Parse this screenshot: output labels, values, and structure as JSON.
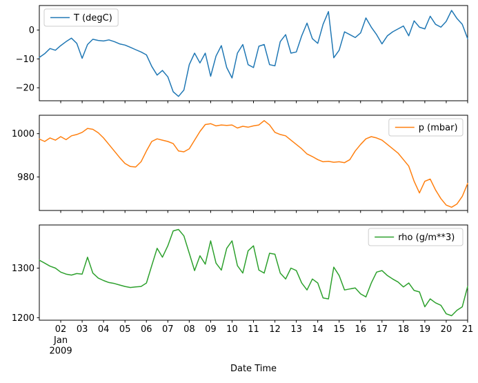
{
  "figure": {
    "xlabel": "Date Time",
    "x_offset_labels": [
      "Jan",
      "2009"
    ],
    "xticks": {
      "values": [
        2,
        3,
        4,
        5,
        6,
        7,
        8,
        9,
        10,
        11,
        12,
        13,
        14,
        15,
        16,
        17,
        18,
        19,
        20,
        21
      ],
      "labels": [
        "02",
        "03",
        "04",
        "05",
        "06",
        "07",
        "08",
        "09",
        "10",
        "11",
        "12",
        "13",
        "14",
        "15",
        "16",
        "17",
        "18",
        "19",
        "20",
        "21"
      ]
    },
    "background": "#ffffff",
    "frame_color": "#000000"
  },
  "chart_data": [
    {
      "id": "temperature",
      "type": "line",
      "x_start": 1,
      "x_step": 0.25,
      "xlim": [
        1,
        21
      ],
      "ylim": [
        -24.5,
        8.5
      ],
      "ytick_values": [
        0,
        -10,
        -20
      ],
      "ytick_labels": [
        "0",
        "−10",
        "−20"
      ],
      "legend_loc": "upper-left",
      "grid": false,
      "series": [
        {
          "name": "T (degC)",
          "color": "#1f77b4",
          "values": [
            -9.5,
            -8.2,
            -6.4,
            -7.0,
            -5.4,
            -4.0,
            -2.8,
            -4.6,
            -9.8,
            -5.0,
            -3.2,
            -3.6,
            -3.8,
            -3.4,
            -4.0,
            -4.8,
            -5.2,
            -6.0,
            -6.8,
            -7.6,
            -8.6,
            -12.6,
            -15.6,
            -14.0,
            -16.2,
            -21.4,
            -23.0,
            -20.8,
            -12.0,
            -8.0,
            -11.4,
            -8.0,
            -16.0,
            -9.0,
            -5.4,
            -13.0,
            -16.6,
            -8.0,
            -5.0,
            -12.0,
            -13.0,
            -5.6,
            -5.0,
            -12.0,
            -12.4,
            -4.0,
            -1.6,
            -8.0,
            -7.6,
            -2.0,
            2.4,
            -3.0,
            -4.6,
            2.0,
            6.4,
            -9.6,
            -7.0,
            -0.6,
            -1.6,
            -2.6,
            -1.0,
            4.2,
            1.0,
            -1.6,
            -4.8,
            -2.0,
            -0.6,
            0.4,
            1.4,
            -2.0,
            3.2,
            1.0,
            0.4,
            4.8,
            2.0,
            1.0,
            3.0,
            6.8,
            4.0,
            2.0,
            -3.0
          ]
        }
      ]
    },
    {
      "id": "pressure",
      "type": "line",
      "x_start": 1,
      "x_step": 0.25,
      "xlim": [
        1,
        21
      ],
      "ylim": [
        964.5,
        1008.5
      ],
      "ytick_values": [
        1000,
        980
      ],
      "ytick_labels": [
        "1000",
        "980"
      ],
      "legend_loc": "upper-right",
      "grid": false,
      "series": [
        {
          "name": "p (mbar)",
          "color": "#ff7f0e",
          "values": [
            997.5,
            996.4,
            998.0,
            997.0,
            998.6,
            997.2,
            999.0,
            999.6,
            1000.6,
            1002.4,
            1002.0,
            1000.4,
            998.0,
            995.0,
            992.0,
            989.0,
            986.2,
            984.8,
            984.6,
            987.0,
            992.0,
            996.4,
            997.6,
            997.0,
            996.4,
            995.4,
            992.0,
            991.6,
            993.0,
            997.0,
            1001.0,
            1004.2,
            1004.6,
            1003.6,
            1004.0,
            1003.8,
            1004.0,
            1002.6,
            1003.4,
            1003.0,
            1003.6,
            1004.0,
            1006.0,
            1004.0,
            1000.6,
            999.6,
            999.0,
            997.0,
            995.0,
            993.0,
            990.6,
            989.4,
            988.0,
            987.0,
            987.2,
            986.8,
            987.0,
            986.6,
            988.0,
            992.0,
            995.0,
            997.6,
            998.6,
            998.0,
            997.0,
            995.0,
            993.0,
            991.0,
            988.0,
            985.0,
            978.0,
            972.6,
            978.0,
            979.0,
            974.0,
            970.0,
            967.0,
            966.0,
            967.5,
            971.0,
            977.0
          ]
        }
      ]
    },
    {
      "id": "density",
      "type": "line",
      "x_start": 1,
      "x_step": 0.25,
      "xlim": [
        1,
        21
      ],
      "ylim": [
        1195,
        1387
      ],
      "ytick_values": [
        1300,
        1200
      ],
      "ytick_labels": [
        "1300",
        "1200"
      ],
      "legend_loc": "upper-right",
      "grid": false,
      "series": [
        {
          "name": "rho (g/m**3)",
          "color": "#2ca02c",
          "values": [
            1316,
            1310,
            1304,
            1300,
            1292,
            1288,
            1286,
            1289,
            1288,
            1322,
            1290,
            1280,
            1275,
            1271,
            1269,
            1266,
            1263,
            1261,
            1262,
            1263,
            1270,
            1305,
            1340,
            1322,
            1345,
            1375,
            1378,
            1365,
            1330,
            1295,
            1325,
            1308,
            1355,
            1310,
            1296,
            1340,
            1355,
            1305,
            1290,
            1335,
            1345,
            1296,
            1290,
            1330,
            1328,
            1290,
            1278,
            1300,
            1295,
            1270,
            1256,
            1278,
            1270,
            1240,
            1238,
            1302,
            1285,
            1256,
            1258,
            1260,
            1248,
            1242,
            1270,
            1292,
            1295,
            1285,
            1278,
            1272,
            1262,
            1270,
            1255,
            1252,
            1222,
            1238,
            1230,
            1225,
            1208,
            1204,
            1215,
            1222,
            1263
          ]
        }
      ]
    }
  ]
}
